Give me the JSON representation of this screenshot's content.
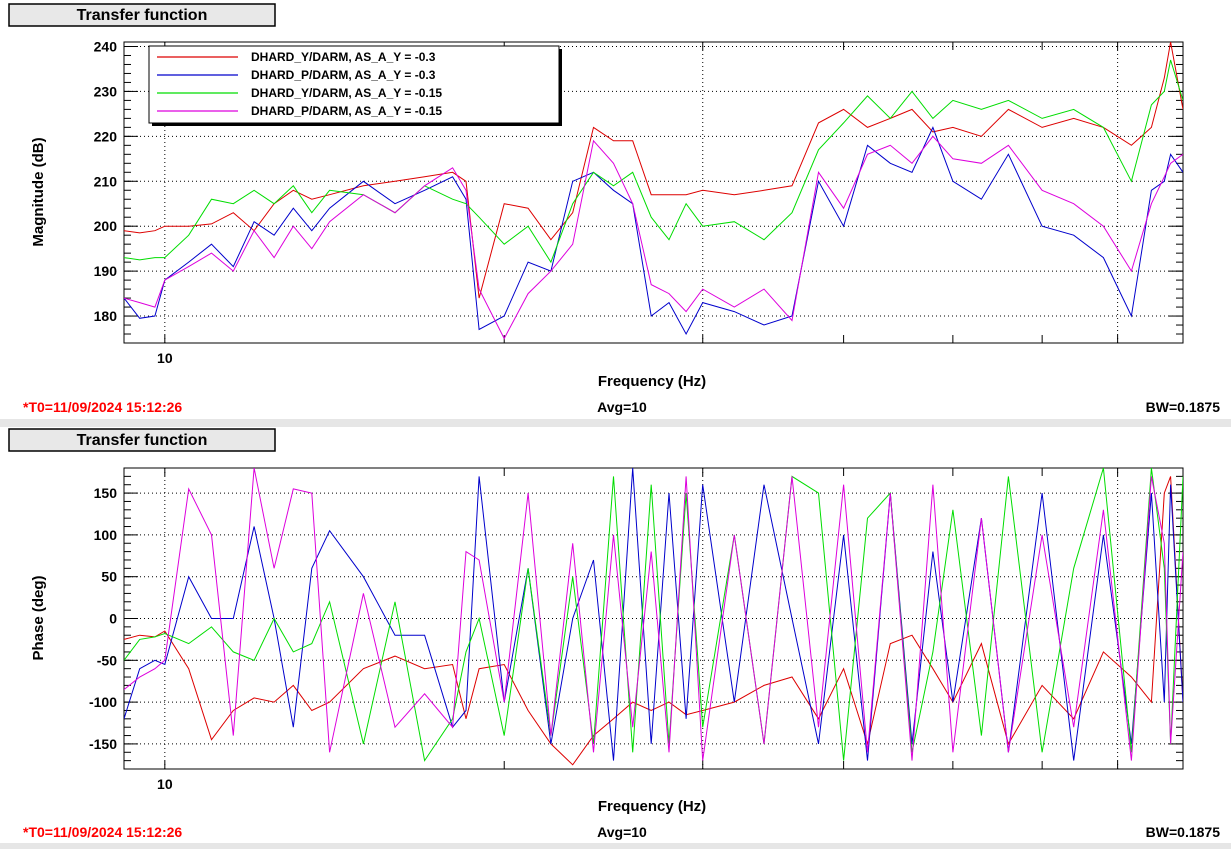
{
  "colors": {
    "series": [
      "#dd0000",
      "#0000cc",
      "#00dd00",
      "#dd00dd"
    ],
    "t0": "#ff0000",
    "text": "#000000"
  },
  "footer": {
    "t0": "*T0=11/09/2024 15:12:26",
    "avg": "Avg=10",
    "bw": "BW=0.1875"
  },
  "chart_data": [
    {
      "type": "line",
      "title": "Transfer function",
      "xlabel": "Frequency (Hz)",
      "ylabel": "Magnitude (dB)",
      "x_scale": "log",
      "xlim": [
        9.2,
        80
      ],
      "ylim": [
        174,
        241
      ],
      "x_ticks": [
        10
      ],
      "x_tick_labels": [
        "10"
      ],
      "y_ticks": [
        180,
        190,
        200,
        210,
        220,
        230,
        240
      ],
      "grid": true,
      "legend_position": "top-left",
      "series": [
        {
          "name": "DHARD_Y/DARM, AS_A_Y = -0.3",
          "x": [
            9.2,
            9.5,
            9.8,
            10.0,
            10.5,
            11.0,
            11.5,
            12.0,
            12.5,
            13.0,
            13.5,
            14.0,
            15.0,
            16.0,
            17.0,
            18.0,
            18.5,
            19.0,
            20.0,
            21.0,
            22.0,
            23.0,
            24.0,
            25.0,
            26.0,
            27.0,
            28.0,
            29.0,
            30.0,
            32.0,
            34.0,
            36.0,
            38.0,
            40.0,
            42.0,
            44.0,
            46.0,
            48.0,
            50.0,
            53.0,
            56.0,
            60.0,
            64.0,
            68.0,
            72.0,
            75.0,
            77.0,
            78.0,
            80.0
          ],
          "values": [
            199,
            198.5,
            199,
            200,
            200,
            200.5,
            203,
            199,
            205,
            208,
            206,
            207,
            209,
            210,
            211,
            212,
            210,
            184,
            205,
            204,
            197,
            203,
            222,
            219,
            219,
            207,
            207,
            207,
            208,
            207,
            208,
            209,
            223,
            226,
            222,
            224,
            226,
            221,
            222,
            220,
            226,
            222,
            224,
            222,
            218,
            222,
            233,
            241,
            226
          ]
        },
        {
          "name": "DHARD_P/DARM, AS_A_Y = -0.3",
          "x": [
            9.2,
            9.5,
            9.8,
            10.0,
            10.5,
            11.0,
            11.5,
            12.0,
            12.5,
            13.0,
            13.5,
            14.0,
            15.0,
            16.0,
            17.0,
            18.0,
            18.5,
            19.0,
            20.0,
            21.0,
            22.0,
            23.0,
            24.0,
            25.0,
            26.0,
            27.0,
            28.0,
            29.0,
            30.0,
            32.0,
            34.0,
            36.0,
            38.0,
            40.0,
            42.0,
            44.0,
            46.0,
            48.0,
            50.0,
            53.0,
            56.0,
            60.0,
            64.0,
            68.0,
            72.0,
            75.0,
            77.0,
            78.0,
            80.0
          ],
          "values": [
            184,
            179.5,
            180,
            188,
            192,
            196,
            191,
            201,
            198,
            204,
            199,
            204,
            210,
            205,
            208,
            211,
            206,
            177,
            180,
            192,
            190,
            210,
            212,
            208,
            205,
            180,
            183,
            176,
            183,
            181,
            178,
            180,
            210,
            200,
            218,
            214,
            212,
            222,
            210,
            206,
            216,
            200,
            198,
            193,
            180,
            208,
            210,
            216,
            212
          ]
        },
        {
          "name": "DHARD_Y/DARM, AS_A_Y = -0.15",
          "x": [
            9.2,
            9.5,
            9.8,
            10.0,
            10.5,
            11.0,
            11.5,
            12.0,
            12.5,
            13.0,
            13.5,
            14.0,
            15.0,
            16.0,
            17.0,
            18.0,
            18.5,
            19.0,
            20.0,
            21.0,
            22.0,
            23.0,
            24.0,
            25.0,
            26.0,
            27.0,
            28.0,
            29.0,
            30.0,
            32.0,
            34.0,
            36.0,
            38.0,
            40.0,
            42.0,
            44.0,
            46.0,
            48.0,
            50.0,
            53.0,
            56.0,
            60.0,
            64.0,
            68.0,
            72.0,
            75.0,
            77.0,
            78.0,
            80.0
          ],
          "values": [
            193,
            192.5,
            193,
            193,
            198,
            206,
            205,
            208,
            205,
            209,
            203,
            208,
            207,
            203,
            209,
            206,
            205,
            202,
            196,
            200,
            192,
            205,
            212,
            209,
            212,
            202,
            197,
            205,
            200,
            201,
            197,
            203,
            217,
            223,
            229,
            224,
            230,
            224,
            228,
            226,
            228,
            224,
            226,
            222,
            210,
            227,
            230,
            237,
            228
          ]
        },
        {
          "name": "DHARD_P/DARM, AS_A_Y = -0.15",
          "x": [
            9.2,
            9.5,
            9.8,
            10.0,
            10.5,
            11.0,
            11.5,
            12.0,
            12.5,
            13.0,
            13.5,
            14.0,
            15.0,
            16.0,
            17.0,
            18.0,
            18.5,
            19.0,
            20.0,
            21.0,
            22.0,
            23.0,
            24.0,
            25.0,
            26.0,
            27.0,
            28.0,
            29.0,
            30.0,
            32.0,
            34.0,
            36.0,
            38.0,
            40.0,
            42.0,
            44.0,
            46.0,
            48.0,
            50.0,
            53.0,
            56.0,
            60.0,
            64.0,
            68.0,
            72.0,
            75.0,
            77.0,
            78.0,
            80.0
          ],
          "values": [
            184,
            183,
            182,
            188,
            191,
            194,
            190,
            199,
            193,
            200,
            195,
            201,
            207,
            203,
            209,
            213,
            208,
            186,
            175,
            185,
            190,
            196,
            219,
            214,
            205,
            187,
            185,
            181,
            186,
            182,
            186,
            179,
            212,
            204,
            216,
            218,
            214,
            220,
            215,
            214,
            218,
            208,
            205,
            200,
            190,
            205,
            211,
            214,
            216
          ]
        }
      ]
    },
    {
      "type": "line",
      "title": "Transfer function",
      "xlabel": "Frequency (Hz)",
      "ylabel": "Phase (deg)",
      "x_scale": "log",
      "xlim": [
        9.2,
        80
      ],
      "ylim": [
        -180,
        180
      ],
      "x_ticks": [
        10
      ],
      "x_tick_labels": [
        "10"
      ],
      "y_ticks": [
        -150,
        -100,
        -50,
        0,
        50,
        100,
        150
      ],
      "grid": true,
      "series": [
        {
          "x": [
            9.2,
            9.5,
            9.8,
            10.0,
            10.5,
            11.0,
            11.5,
            12.0,
            12.5,
            13.0,
            13.5,
            14.0,
            15.0,
            16.0,
            17.0,
            18.0,
            18.5,
            19.0,
            20.0,
            21.0,
            22.0,
            23.0,
            24.0,
            25.0,
            26.0,
            27.0,
            28.0,
            29.0,
            30.0,
            32.0,
            34.0,
            36.0,
            38.0,
            40.0,
            42.0,
            44.0,
            46.0,
            48.0,
            50.0,
            53.0,
            56.0,
            60.0,
            64.0,
            68.0,
            72.0,
            75.0,
            77.0,
            78.0,
            80.0
          ],
          "values": [
            -25,
            -20,
            -22,
            -15,
            -60,
            -145,
            -110,
            -95,
            -100,
            -80,
            -110,
            -100,
            -60,
            -45,
            -60,
            -55,
            -120,
            -60,
            -55,
            -110,
            -150,
            -175,
            -140,
            -120,
            -100,
            -110,
            -100,
            -115,
            -110,
            -100,
            -80,
            -70,
            -120,
            -60,
            -150,
            -30,
            -20,
            -60,
            -100,
            -30,
            -150,
            -80,
            -120,
            -40,
            -70,
            -100,
            150,
            170,
            -100
          ]
        },
        {
          "x": [
            9.2,
            9.5,
            9.8,
            10.0,
            10.5,
            11.0,
            11.5,
            12.0,
            12.5,
            13.0,
            13.5,
            14.0,
            15.0,
            16.0,
            17.0,
            18.0,
            18.5,
            19.0,
            20.0,
            21.0,
            22.0,
            23.0,
            24.0,
            25.0,
            26.0,
            27.0,
            28.0,
            29.0,
            30.0,
            32.0,
            34.0,
            36.0,
            38.0,
            40.0,
            42.0,
            44.0,
            46.0,
            48.0,
            50.0,
            53.0,
            56.0,
            60.0,
            64.0,
            68.0,
            72.0,
            75.0,
            77.0,
            78.0,
            80.0
          ],
          "values": [
            -120,
            -60,
            -50,
            -55,
            50,
            0,
            0,
            110,
            0,
            -130,
            60,
            105,
            50,
            -20,
            -20,
            -130,
            -110,
            170,
            -100,
            60,
            -150,
            0,
            70,
            -170,
            180,
            -150,
            150,
            -120,
            160,
            -100,
            160,
            0,
            -150,
            100,
            -170,
            150,
            -150,
            80,
            -100,
            120,
            -160,
            150,
            -170,
            100,
            -150,
            150,
            -100,
            160,
            -100
          ]
        },
        {
          "x": [
            9.2,
            9.5,
            9.8,
            10.0,
            10.5,
            11.0,
            11.5,
            12.0,
            12.5,
            13.0,
            13.5,
            14.0,
            15.0,
            16.0,
            17.0,
            18.0,
            18.5,
            19.0,
            20.0,
            21.0,
            22.0,
            23.0,
            24.0,
            25.0,
            26.0,
            27.0,
            28.0,
            29.0,
            30.0,
            32.0,
            34.0,
            36.0,
            38.0,
            40.0,
            42.0,
            44.0,
            46.0,
            48.0,
            50.0,
            53.0,
            56.0,
            60.0,
            64.0,
            68.0,
            72.0,
            75.0,
            77.0,
            78.0,
            80.0
          ],
          "values": [
            -50,
            -25,
            -22,
            -18,
            -30,
            -10,
            -40,
            -50,
            0,
            -40,
            -30,
            20,
            -150,
            20,
            -170,
            -120,
            -40,
            0,
            -140,
            60,
            -140,
            50,
            -150,
            170,
            -160,
            160,
            -150,
            150,
            -130,
            100,
            -150,
            170,
            150,
            -170,
            120,
            150,
            -160,
            -40,
            130,
            -140,
            170,
            -160,
            60,
            180,
            -160,
            180,
            60,
            -150,
            170
          ]
        },
        {
          "x": [
            9.2,
            9.5,
            9.8,
            10.0,
            10.5,
            11.0,
            11.5,
            12.0,
            12.5,
            13.0,
            13.5,
            14.0,
            15.0,
            16.0,
            17.0,
            18.0,
            18.5,
            19.0,
            20.0,
            21.0,
            22.0,
            23.0,
            24.0,
            25.0,
            26.0,
            27.0,
            28.0,
            29.0,
            30.0,
            32.0,
            34.0,
            36.0,
            38.0,
            40.0,
            42.0,
            44.0,
            46.0,
            48.0,
            50.0,
            53.0,
            56.0,
            60.0,
            64.0,
            68.0,
            72.0,
            75.0,
            77.0,
            78.0,
            80.0
          ],
          "values": [
            -85,
            -70,
            -60,
            -50,
            155,
            100,
            -140,
            180,
            60,
            155,
            150,
            -160,
            30,
            -130,
            -90,
            -130,
            80,
            70,
            -100,
            150,
            -140,
            90,
            -160,
            100,
            -130,
            80,
            -160,
            170,
            -170,
            100,
            -150,
            170,
            -130,
            160,
            -160,
            150,
            -170,
            160,
            -160,
            120,
            -160,
            100,
            -130,
            130,
            -170,
            170,
            90,
            -150,
            80
          ]
        }
      ]
    }
  ]
}
